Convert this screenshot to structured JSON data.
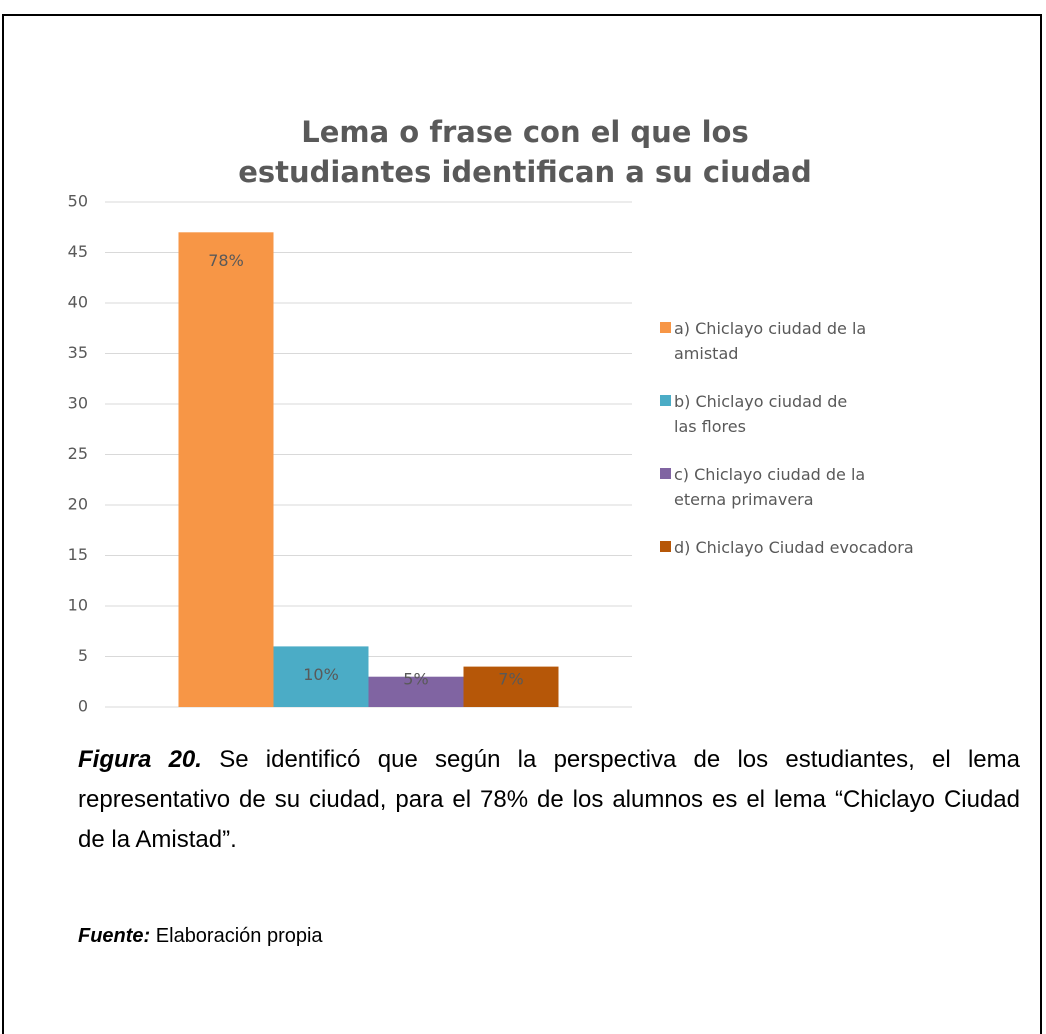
{
  "chart_data": {
    "type": "bar",
    "title": "Lema  o frase con el que los estudiantes identifican a su ciudad",
    "categories": [
      null
    ],
    "series": [
      {
        "name": "a) Chiclayo ciudad de la amistad",
        "color": "#f79646",
        "values": [
          47
        ],
        "value_labels": [
          "78%"
        ]
      },
      {
        "name": "b) Chiclayo ciudad de las flores",
        "color": "#4bacc6",
        "values": [
          6
        ],
        "value_labels": [
          "10%"
        ]
      },
      {
        "name": "c) Chiclayo ciudad de la eterna primavera",
        "color": "#8064a2",
        "values": [
          3
        ],
        "value_labels": [
          "5%"
        ]
      },
      {
        "name": "d) Chiclayo Ciudad evocadora",
        "color": "#b65708",
        "values": [
          4
        ],
        "value_labels": [
          "7%"
        ]
      }
    ],
    "ylim": [
      0,
      50
    ],
    "yticks": [
      0,
      5,
      10,
      15,
      20,
      25,
      30,
      35,
      40,
      45,
      50
    ],
    "grid": true,
    "legend": "right"
  },
  "caption": {
    "figure_label": "Figura 20.",
    "text": "Se identificó que según la perspectiva de los estudiantes, el lema representativo de su ciudad, para el 78% de los alumnos es el lema “Chiclayo Ciudad de la Amistad”."
  },
  "source": {
    "label": "Fuente:",
    "text": "Elaboración propia"
  }
}
